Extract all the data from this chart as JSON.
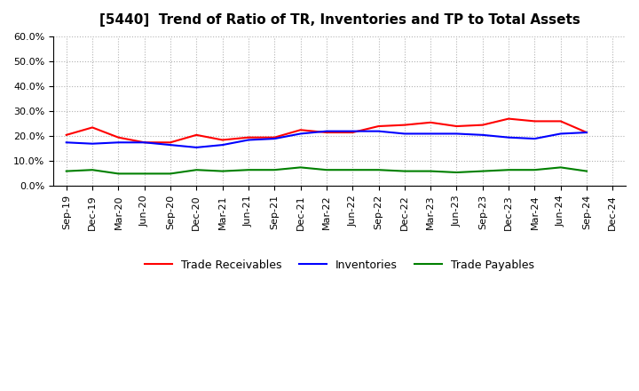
{
  "title": "[5440]  Trend of Ratio of TR, Inventories and TP to Total Assets",
  "x_labels": [
    "Sep-19",
    "Dec-19",
    "Mar-20",
    "Jun-20",
    "Sep-20",
    "Dec-20",
    "Mar-21",
    "Jun-21",
    "Sep-21",
    "Dec-21",
    "Mar-22",
    "Jun-22",
    "Sep-22",
    "Dec-22",
    "Mar-23",
    "Jun-23",
    "Sep-23",
    "Dec-23",
    "Mar-24",
    "Jun-24",
    "Sep-24",
    "Dec-24"
  ],
  "trade_receivables": [
    20.5,
    23.5,
    19.5,
    17.5,
    17.5,
    20.5,
    18.5,
    19.5,
    19.5,
    22.5,
    21.5,
    21.5,
    24.0,
    24.5,
    25.5,
    24.0,
    24.5,
    27.0,
    26.0,
    26.0,
    21.5,
    null
  ],
  "inventories": [
    17.5,
    17.0,
    17.5,
    17.5,
    16.5,
    15.5,
    16.5,
    18.5,
    19.0,
    21.0,
    22.0,
    22.0,
    22.0,
    21.0,
    21.0,
    21.0,
    20.5,
    19.5,
    19.0,
    21.0,
    21.5,
    null
  ],
  "trade_payables": [
    6.0,
    6.5,
    5.0,
    5.0,
    5.0,
    6.5,
    6.0,
    6.5,
    6.5,
    7.5,
    6.5,
    6.5,
    6.5,
    6.0,
    6.0,
    5.5,
    6.0,
    6.5,
    6.5,
    7.5,
    6.0,
    null
  ],
  "tr_color": "#ff0000",
  "inv_color": "#0000ff",
  "tp_color": "#008000",
  "ylim": [
    0,
    60
  ],
  "yticks": [
    0,
    10,
    20,
    30,
    40,
    50,
    60
  ],
  "background_color": "#ffffff",
  "grid_color": "#aaaaaa",
  "legend_labels": [
    "Trade Receivables",
    "Inventories",
    "Trade Payables"
  ]
}
